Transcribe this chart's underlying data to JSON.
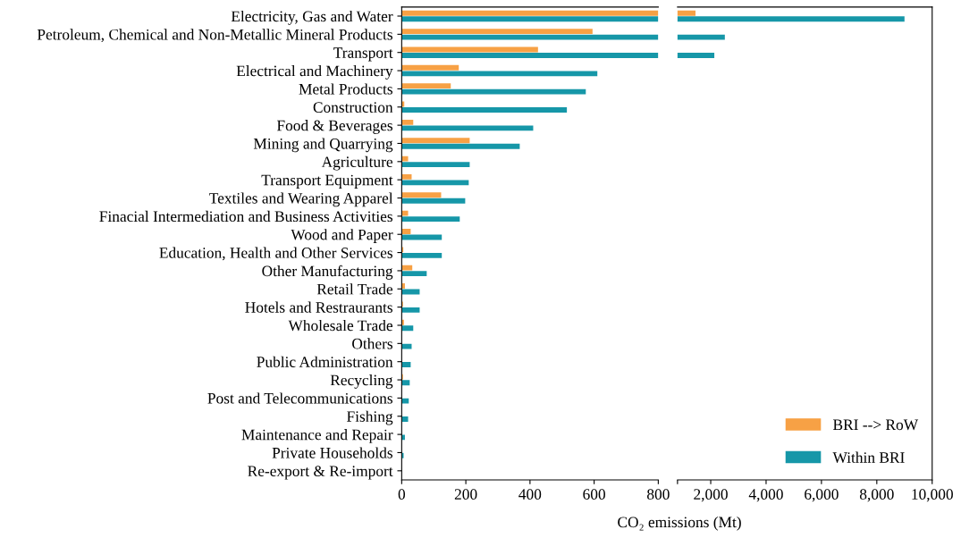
{
  "chart_data": [
    {
      "type": "bar",
      "orientation": "horizontal",
      "xlabel": "CO₂ emissions (Mt)",
      "categories": [
        "Electricity, Gas and Water",
        "Petroleum, Chemical and Non-Metallic Mineral Products",
        "Transport",
        "Electrical and Machinery",
        "Metal Products",
        "Construction",
        "Food & Beverages",
        "Mining and Quarrying",
        "Agriculture",
        "Transport Equipment",
        "Textiles and Wearing Apparel",
        "Finacial Intermediation and Business Activities",
        "Wood and Paper",
        "Education, Health and Other Services",
        "Other Manufacturing",
        "Retail Trade",
        "Hotels and Restraurants",
        "Wholesale Trade",
        "Others",
        "Public Administration",
        "Recycling",
        "Post and Telecommunications",
        "Fishing",
        "Maintenance and Repair",
        "Private Households",
        "Re-export & Re-import"
      ],
      "series": [
        {
          "color": "#f7a145",
          "values": [
            800,
            595,
            425,
            178,
            153,
            8,
            36,
            212,
            20,
            31,
            123,
            20,
            28,
            5,
            33,
            10,
            4,
            7,
            0,
            0,
            4,
            0,
            0,
            0,
            0,
            0
          ]
        },
        {
          "color": "#1697a8",
          "values": [
            800,
            800,
            800,
            610,
            574,
            515,
            410,
            368,
            212,
            209,
            198,
            181,
            125,
            125,
            78,
            56,
            56,
            36,
            31,
            28,
            25,
            22,
            20,
            10,
            6,
            0
          ]
        }
      ],
      "xlim": [
        0,
        800
      ],
      "xticks": [
        0,
        200,
        400,
        600,
        800
      ],
      "grid": false,
      "legend": false
    },
    {
      "type": "bar",
      "orientation": "horizontal",
      "categories": [
        null,
        null,
        null,
        null,
        null,
        null,
        null,
        null,
        null,
        null,
        null,
        null,
        null,
        null,
        null,
        null,
        null,
        null,
        null,
        null,
        null,
        null,
        null,
        null,
        null,
        null
      ],
      "series": [
        {
          "name": "BRI --> RoW",
          "color": "#f7a145",
          "values": [
            1450,
            null,
            null,
            null,
            null,
            null,
            null,
            null,
            null,
            null,
            null,
            null,
            null,
            null,
            null,
            null,
            null,
            null,
            null,
            null,
            null,
            null,
            null,
            null,
            null,
            null
          ]
        },
        {
          "name": "Within BRI",
          "color": "#1697a8",
          "values": [
            9000,
            2510,
            2130,
            null,
            null,
            null,
            null,
            null,
            null,
            null,
            null,
            null,
            null,
            null,
            null,
            null,
            null,
            null,
            null,
            null,
            null,
            null,
            null,
            null,
            null,
            null
          ]
        }
      ],
      "xlim": [
        800,
        10000
      ],
      "xticks": [
        {
          "value": 800,
          "label": null
        },
        {
          "value": 2000,
          "label": "2,000"
        },
        {
          "value": 4000,
          "label": "4,000"
        },
        {
          "value": 6000,
          "label": "6,000"
        },
        {
          "value": 8000,
          "label": "8,000"
        },
        {
          "value": 10000,
          "label": "10,000"
        }
      ],
      "tick_labels": "x",
      "grid": false,
      "legend": "bottom right"
    }
  ]
}
